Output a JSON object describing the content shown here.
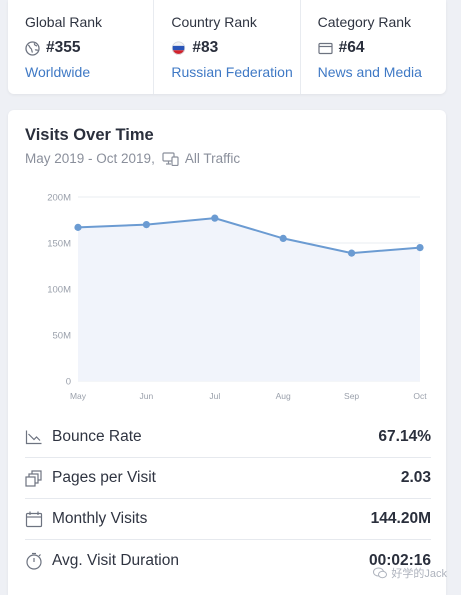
{
  "ranks": [
    {
      "title": "Global Rank",
      "value": "#355",
      "link": "Worldwide",
      "icon": "globe-icon"
    },
    {
      "title": "Country Rank",
      "value": "#83",
      "link": "Russian Federation",
      "icon": "russia-flag-icon"
    },
    {
      "title": "Category Rank",
      "value": "#64",
      "link": "News and Media",
      "icon": "category-icon"
    }
  ],
  "visits": {
    "title": "Visits Over Time",
    "date_range": "May 2019 - Oct 2019,",
    "traffic": "All Traffic"
  },
  "chart_data": {
    "type": "area",
    "categories": [
      "May",
      "Jun",
      "Jul",
      "Aug",
      "Sep",
      "Oct"
    ],
    "values": [
      167,
      170,
      177,
      155,
      139,
      145
    ],
    "ytick_labels": [
      "0",
      "50M",
      "100M",
      "150M",
      "200M"
    ],
    "yticks": [
      0,
      50,
      100,
      150,
      200
    ],
    "ylim": [
      0,
      200
    ],
    "grid": true,
    "line_color": "#6b9bd2",
    "fill_color": "#f1f4fb"
  },
  "metrics": [
    {
      "label": "Bounce Rate",
      "value": "67.14%",
      "icon": "trend-icon"
    },
    {
      "label": "Pages per Visit",
      "value": "2.03",
      "icon": "pages-icon"
    },
    {
      "label": "Monthly Visits",
      "value": "144.20M",
      "icon": "calendar-icon"
    },
    {
      "label": "Avg. Visit Duration",
      "value": "00:02:16",
      "icon": "stopwatch-icon"
    }
  ],
  "watermark": "好学的Jack",
  "colors": {
    "link": "#3f79c5",
    "background": "#eef0f5"
  }
}
